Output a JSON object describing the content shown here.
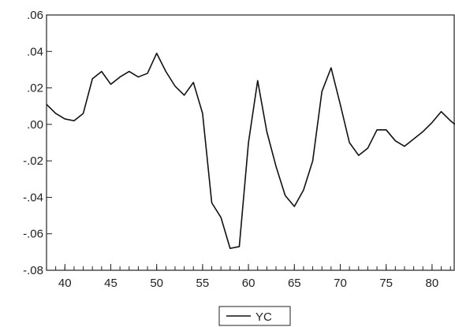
{
  "chart_data": {
    "type": "line",
    "title": "",
    "xlabel": "",
    "ylabel": "",
    "xlim": [
      38,
      82.5
    ],
    "ylim": [
      -0.08,
      0.06
    ],
    "x_ticks": [
      40,
      45,
      50,
      55,
      60,
      65,
      70,
      75,
      80
    ],
    "x_tick_labels": [
      "40",
      "45",
      "50",
      "55",
      "60",
      "65",
      "70",
      "75",
      "80"
    ],
    "y_ticks": [
      -0.08,
      -0.06,
      -0.04,
      -0.02,
      0.0,
      0.02,
      0.04,
      0.06
    ],
    "y_tick_labels": [
      "-.08",
      "-.06",
      "-.04",
      "-.02",
      ".00",
      ".02",
      ".04",
      ".06"
    ],
    "grid": false,
    "legend_position": "bottom-center",
    "series": [
      {
        "name": "YC",
        "color": "#111111",
        "x": [
          38,
          39,
          40,
          41,
          42,
          43,
          44,
          45,
          46,
          47,
          48,
          49,
          50,
          51,
          52,
          53,
          54,
          55,
          56,
          57,
          58,
          59,
          60,
          61,
          62,
          63,
          64,
          65,
          66,
          67,
          68,
          69,
          70,
          71,
          72,
          73,
          74,
          75,
          76,
          77,
          78,
          79,
          80,
          81,
          82,
          82.5
        ],
        "y": [
          0.011,
          0.006,
          0.003,
          0.002,
          0.006,
          0.025,
          0.029,
          0.022,
          0.026,
          0.029,
          0.026,
          0.028,
          0.039,
          0.029,
          0.021,
          0.016,
          0.023,
          0.006,
          -0.043,
          -0.051,
          -0.068,
          -0.067,
          -0.01,
          0.024,
          -0.004,
          -0.023,
          -0.039,
          -0.045,
          -0.036,
          -0.02,
          0.018,
          0.031,
          0.011,
          -0.01,
          -0.017,
          -0.013,
          -0.003,
          -0.003,
          -0.009,
          -0.012,
          -0.008,
          -0.004,
          0.001,
          0.007,
          0.002,
          0.0
        ]
      }
    ]
  }
}
